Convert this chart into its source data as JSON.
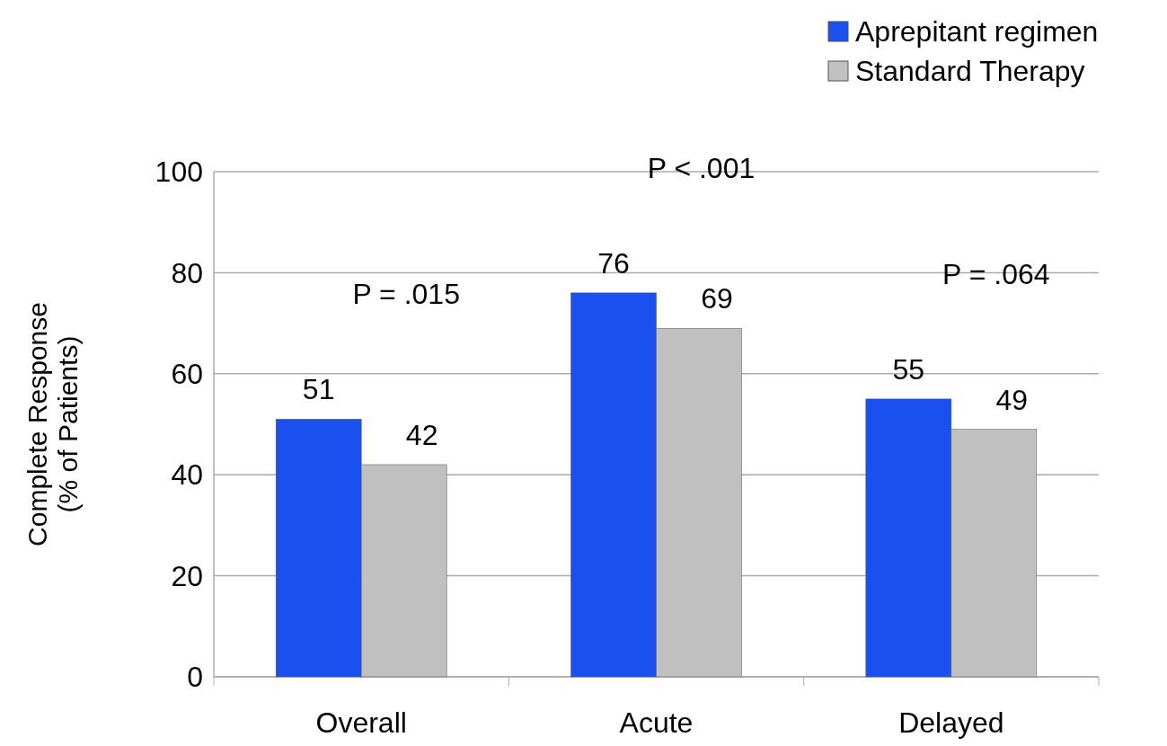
{
  "chart_data": {
    "type": "bar",
    "ylabel": "Complete Response\n(% of Patients)",
    "categories": [
      "Overall",
      "Acute",
      "Delayed"
    ],
    "series": [
      {
        "name": "Aprepitant regimen",
        "color": "#1a4ff0",
        "values": [
          51,
          76,
          55
        ]
      },
      {
        "name": "Standard Therapy",
        "color": "#c0c0c0",
        "values": [
          42,
          69,
          49
        ]
      }
    ],
    "ylim": [
      0,
      100
    ],
    "yticks": [
      0,
      20,
      40,
      60,
      80,
      100
    ],
    "grid": "y",
    "legend": "top right",
    "data_labels": true,
    "annotations": [
      "P = .015",
      "P < .001",
      "P = .064"
    ]
  }
}
